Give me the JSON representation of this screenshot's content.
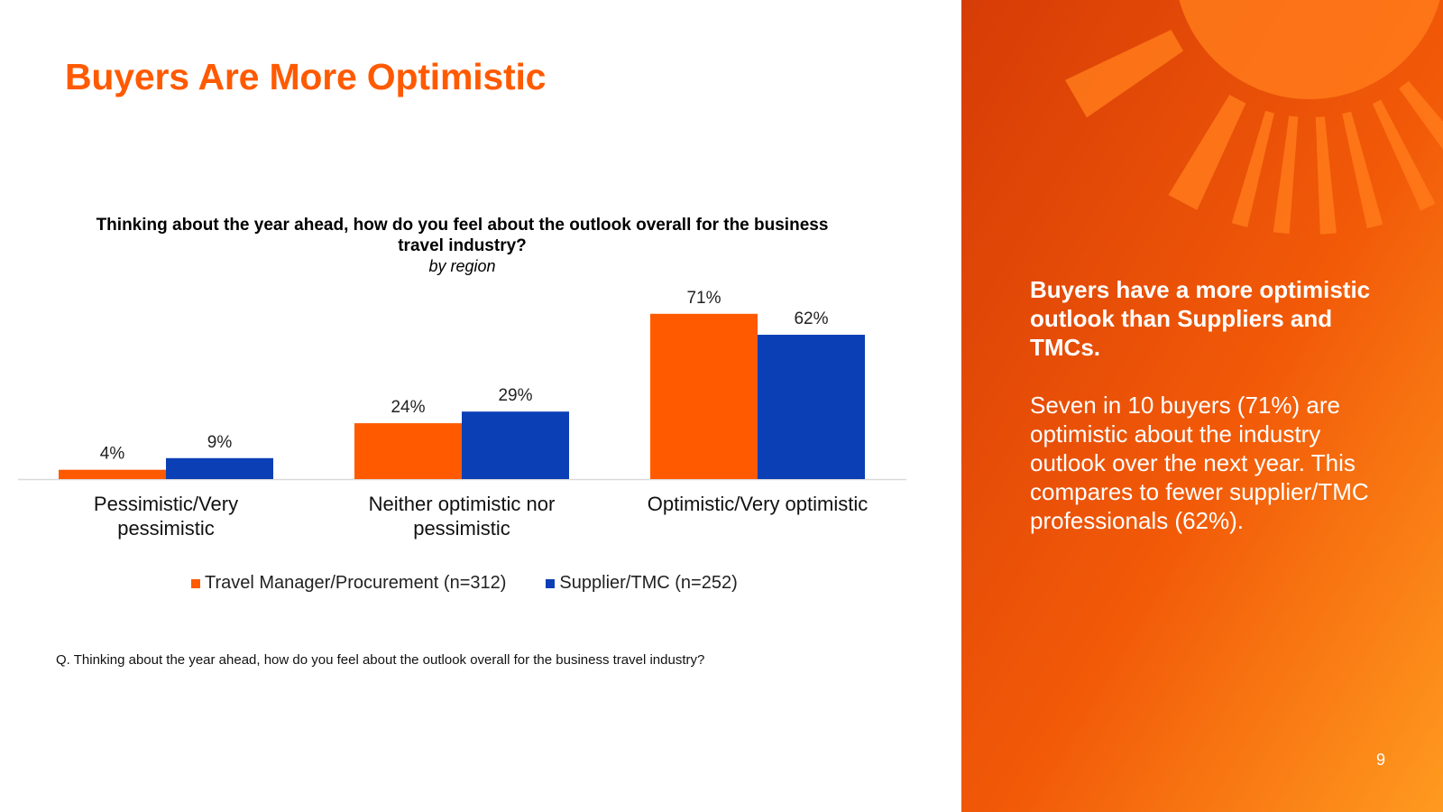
{
  "slide": {
    "title": "Buyers Are More Optimistic",
    "footnote": "Q. Thinking about the year ahead, how do you feel about the outlook overall for the business travel industry?",
    "page_number": "9"
  },
  "side_panel": {
    "heading": "Buyers have a more optimistic outlook than Suppliers and TMCs.",
    "body": "Seven in 10 buyers (71%) are optimistic about the industry outlook over the next year. This compares to fewer supplier/TMC professionals (62%)."
  },
  "colors": {
    "title": "#ff5a00",
    "series_buyers": "#ff5a00",
    "series_suppliers": "#0b3fb5",
    "panel_dark": "#d63c06",
    "panel_light": "#ff9a1f"
  },
  "chart_data": {
    "type": "bar",
    "title": "Thinking about the year ahead, how do you feel about the outlook overall for the business travel industry?",
    "subtitle": "by region",
    "categories": [
      "Pessimistic/Very pessimistic",
      "Neither optimistic nor pessimistic",
      "Optimistic/Very optimistic"
    ],
    "series": [
      {
        "name": "Travel Manager/Procurement (n=312)",
        "values": [
          4,
          24,
          71
        ]
      },
      {
        "name": "Supplier/TMC (n=252)",
        "values": [
          9,
          29,
          62
        ]
      }
    ],
    "value_suffix": "%",
    "ylim": [
      0,
      100
    ],
    "grid": false,
    "legend_position": "bottom",
    "xlabel": "",
    "ylabel": ""
  }
}
